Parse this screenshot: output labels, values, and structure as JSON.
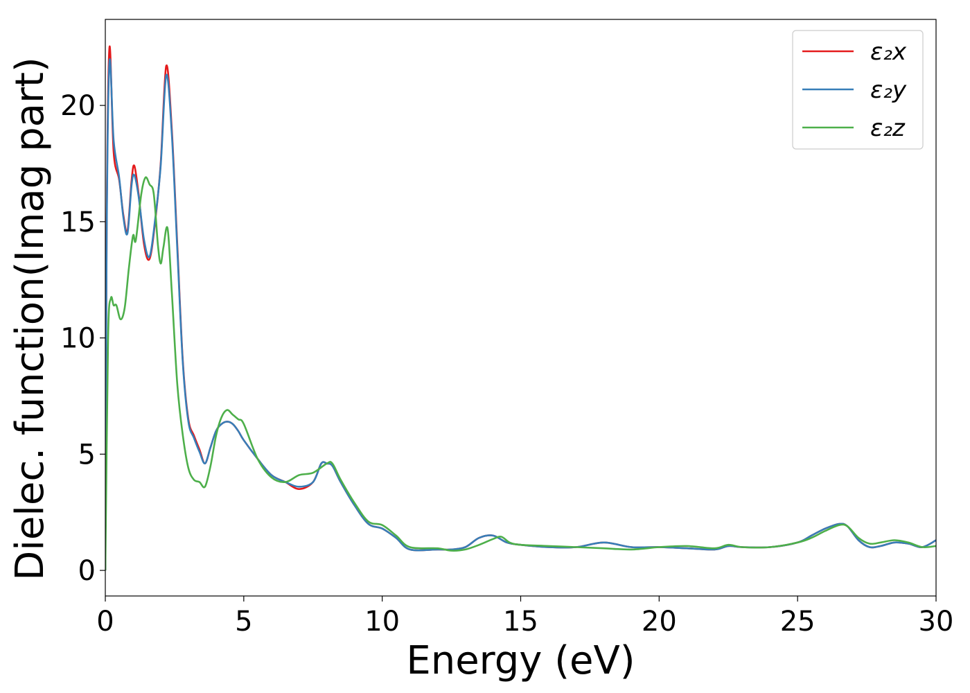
{
  "chart_data": {
    "type": "line",
    "xlabel": "Energy (eV)",
    "ylabel": "Dielec. function(Imag part)",
    "xlim": [
      0,
      30
    ],
    "ylim": [
      -1.1,
      23.7
    ],
    "xticks": [
      0,
      5,
      10,
      15,
      20,
      25,
      30
    ],
    "xtick_labels": [
      "0",
      "5",
      "10",
      "15",
      "20",
      "25",
      "30"
    ],
    "yticks": [
      0,
      5,
      10,
      15,
      20
    ],
    "ytick_labels": [
      "0",
      "5",
      "10",
      "15",
      "20"
    ],
    "grid": false,
    "legend_position": "top-right",
    "series": [
      {
        "name": "ε₂x",
        "color": "#e41a1c",
        "points": [
          [
            0,
            0
          ],
          [
            0.05,
            15
          ],
          [
            0.15,
            22.5
          ],
          [
            0.3,
            18
          ],
          [
            0.5,
            16.8
          ],
          [
            0.65,
            15.3
          ],
          [
            0.8,
            14.6
          ],
          [
            0.95,
            16.8
          ],
          [
            1.05,
            17.4
          ],
          [
            1.2,
            16.2
          ],
          [
            1.4,
            14
          ],
          [
            1.6,
            13.4
          ],
          [
            1.8,
            15
          ],
          [
            2.0,
            17.5
          ],
          [
            2.2,
            21.7
          ],
          [
            2.4,
            19
          ],
          [
            2.6,
            14
          ],
          [
            2.8,
            9
          ],
          [
            3.0,
            6.5
          ],
          [
            3.2,
            5.8
          ],
          [
            3.4,
            5.2
          ],
          [
            3.6,
            4.6
          ],
          [
            3.8,
            5.3
          ],
          [
            4.0,
            6.0
          ],
          [
            4.2,
            6.3
          ],
          [
            4.4,
            6.4
          ],
          [
            4.6,
            6.3
          ],
          [
            4.8,
            6.0
          ],
          [
            5.0,
            5.6
          ],
          [
            5.5,
            4.8
          ],
          [
            6.0,
            4.1
          ],
          [
            6.5,
            3.8
          ],
          [
            7.0,
            3.5
          ],
          [
            7.5,
            3.8
          ],
          [
            7.8,
            4.6
          ],
          [
            8.0,
            4.6
          ],
          [
            8.2,
            4.5
          ],
          [
            8.5,
            3.8
          ],
          [
            9.0,
            2.8
          ],
          [
            9.5,
            2.0
          ],
          [
            10.0,
            1.8
          ],
          [
            10.5,
            1.4
          ],
          [
            11.0,
            0.9
          ],
          [
            12.0,
            0.9
          ],
          [
            12.5,
            0.9
          ],
          [
            13.0,
            1.0
          ],
          [
            13.5,
            1.4
          ],
          [
            14.0,
            1.5
          ],
          [
            14.5,
            1.2
          ],
          [
            15.0,
            1.1
          ],
          [
            16.0,
            1.0
          ],
          [
            17.0,
            1.0
          ],
          [
            18.0,
            1.2
          ],
          [
            19.0,
            1.0
          ],
          [
            20.0,
            1.0
          ],
          [
            21.0,
            0.95
          ],
          [
            22.0,
            0.9
          ],
          [
            22.5,
            1.05
          ],
          [
            23.0,
            1.0
          ],
          [
            24.0,
            1.0
          ],
          [
            25.0,
            1.2
          ],
          [
            25.5,
            1.5
          ],
          [
            26.0,
            1.8
          ],
          [
            26.5,
            2.0
          ],
          [
            26.8,
            1.9
          ],
          [
            27.2,
            1.3
          ],
          [
            27.6,
            1.0
          ],
          [
            28.0,
            1.05
          ],
          [
            28.5,
            1.2
          ],
          [
            29.0,
            1.15
          ],
          [
            29.5,
            1.0
          ],
          [
            30.0,
            1.3
          ]
        ]
      },
      {
        "name": "ε₂y",
        "color": "#377eb8",
        "points": [
          [
            0,
            0
          ],
          [
            0.05,
            14.5
          ],
          [
            0.15,
            21.9
          ],
          [
            0.3,
            18.5
          ],
          [
            0.5,
            16.9
          ],
          [
            0.65,
            15.2
          ],
          [
            0.8,
            14.5
          ],
          [
            0.95,
            16.6
          ],
          [
            1.05,
            17.0
          ],
          [
            1.2,
            16.1
          ],
          [
            1.4,
            14.2
          ],
          [
            1.6,
            13.5
          ],
          [
            1.8,
            15.1
          ],
          [
            2.0,
            17.4
          ],
          [
            2.2,
            21.3
          ],
          [
            2.4,
            18.8
          ],
          [
            2.6,
            13.8
          ],
          [
            2.8,
            8.9
          ],
          [
            3.0,
            6.4
          ],
          [
            3.2,
            5.7
          ],
          [
            3.4,
            5.1
          ],
          [
            3.6,
            4.6
          ],
          [
            3.8,
            5.3
          ],
          [
            4.0,
            6.0
          ],
          [
            4.2,
            6.3
          ],
          [
            4.4,
            6.4
          ],
          [
            4.6,
            6.3
          ],
          [
            4.8,
            6.0
          ],
          [
            5.0,
            5.6
          ],
          [
            5.5,
            4.8
          ],
          [
            6.0,
            4.1
          ],
          [
            6.5,
            3.8
          ],
          [
            7.0,
            3.6
          ],
          [
            7.5,
            3.8
          ],
          [
            7.8,
            4.6
          ],
          [
            8.0,
            4.6
          ],
          [
            8.2,
            4.5
          ],
          [
            8.5,
            3.8
          ],
          [
            9.0,
            2.8
          ],
          [
            9.5,
            2.0
          ],
          [
            10.0,
            1.8
          ],
          [
            10.5,
            1.4
          ],
          [
            11.0,
            0.9
          ],
          [
            12.0,
            0.9
          ],
          [
            12.5,
            0.9
          ],
          [
            13.0,
            1.0
          ],
          [
            13.5,
            1.4
          ],
          [
            14.0,
            1.5
          ],
          [
            14.5,
            1.2
          ],
          [
            15.0,
            1.1
          ],
          [
            16.0,
            1.0
          ],
          [
            17.0,
            1.0
          ],
          [
            18.0,
            1.2
          ],
          [
            19.0,
            1.0
          ],
          [
            20.0,
            1.0
          ],
          [
            21.0,
            0.95
          ],
          [
            22.0,
            0.9
          ],
          [
            22.5,
            1.05
          ],
          [
            23.0,
            1.0
          ],
          [
            24.0,
            1.0
          ],
          [
            25.0,
            1.2
          ],
          [
            25.5,
            1.5
          ],
          [
            26.0,
            1.8
          ],
          [
            26.5,
            2.0
          ],
          [
            26.8,
            1.9
          ],
          [
            27.2,
            1.3
          ],
          [
            27.6,
            1.0
          ],
          [
            28.0,
            1.05
          ],
          [
            28.5,
            1.2
          ],
          [
            29.0,
            1.15
          ],
          [
            29.5,
            1.0
          ],
          [
            30.0,
            1.3
          ]
        ]
      },
      {
        "name": "ε₂z",
        "color": "#4daf4a",
        "points": [
          [
            0,
            0
          ],
          [
            0.1,
            10
          ],
          [
            0.2,
            11.7
          ],
          [
            0.3,
            11.4
          ],
          [
            0.4,
            11.4
          ],
          [
            0.55,
            10.8
          ],
          [
            0.7,
            11.3
          ],
          [
            0.85,
            13
          ],
          [
            1.0,
            14.4
          ],
          [
            1.1,
            14.2
          ],
          [
            1.3,
            16.2
          ],
          [
            1.45,
            16.9
          ],
          [
            1.6,
            16.6
          ],
          [
            1.75,
            16.2
          ],
          [
            1.9,
            14.0
          ],
          [
            2.0,
            13.2
          ],
          [
            2.1,
            13.9
          ],
          [
            2.25,
            14.7
          ],
          [
            2.4,
            12
          ],
          [
            2.6,
            8
          ],
          [
            2.8,
            5.8
          ],
          [
            3.0,
            4.4
          ],
          [
            3.2,
            3.9
          ],
          [
            3.4,
            3.8
          ],
          [
            3.6,
            3.6
          ],
          [
            3.8,
            4.5
          ],
          [
            4.0,
            5.8
          ],
          [
            4.2,
            6.6
          ],
          [
            4.4,
            6.9
          ],
          [
            4.6,
            6.7
          ],
          [
            4.8,
            6.5
          ],
          [
            5.0,
            6.3
          ],
          [
            5.5,
            4.8
          ],
          [
            6.0,
            4.0
          ],
          [
            6.5,
            3.8
          ],
          [
            7.0,
            4.1
          ],
          [
            7.5,
            4.2
          ],
          [
            8.0,
            4.6
          ],
          [
            8.2,
            4.6
          ],
          [
            8.5,
            3.9
          ],
          [
            9.0,
            2.9
          ],
          [
            9.5,
            2.1
          ],
          [
            10.0,
            1.95
          ],
          [
            10.5,
            1.5
          ],
          [
            11.0,
            1.0
          ],
          [
            12.0,
            0.95
          ],
          [
            12.5,
            0.85
          ],
          [
            13.0,
            0.9
          ],
          [
            13.5,
            1.1
          ],
          [
            14.0,
            1.35
          ],
          [
            14.3,
            1.45
          ],
          [
            14.6,
            1.2
          ],
          [
            15.0,
            1.1
          ],
          [
            16.0,
            1.05
          ],
          [
            17.0,
            1.0
          ],
          [
            18.0,
            0.95
          ],
          [
            19.0,
            0.9
          ],
          [
            20.0,
            1.0
          ],
          [
            21.0,
            1.05
          ],
          [
            22.0,
            0.95
          ],
          [
            22.5,
            1.1
          ],
          [
            23.0,
            1.0
          ],
          [
            24.0,
            1.0
          ],
          [
            25.0,
            1.2
          ],
          [
            25.5,
            1.4
          ],
          [
            26.0,
            1.7
          ],
          [
            26.5,
            1.95
          ],
          [
            26.8,
            1.9
          ],
          [
            27.2,
            1.4
          ],
          [
            27.6,
            1.15
          ],
          [
            28.0,
            1.2
          ],
          [
            28.5,
            1.3
          ],
          [
            29.0,
            1.2
          ],
          [
            29.5,
            1.0
          ],
          [
            30.0,
            1.05
          ]
        ]
      }
    ]
  }
}
